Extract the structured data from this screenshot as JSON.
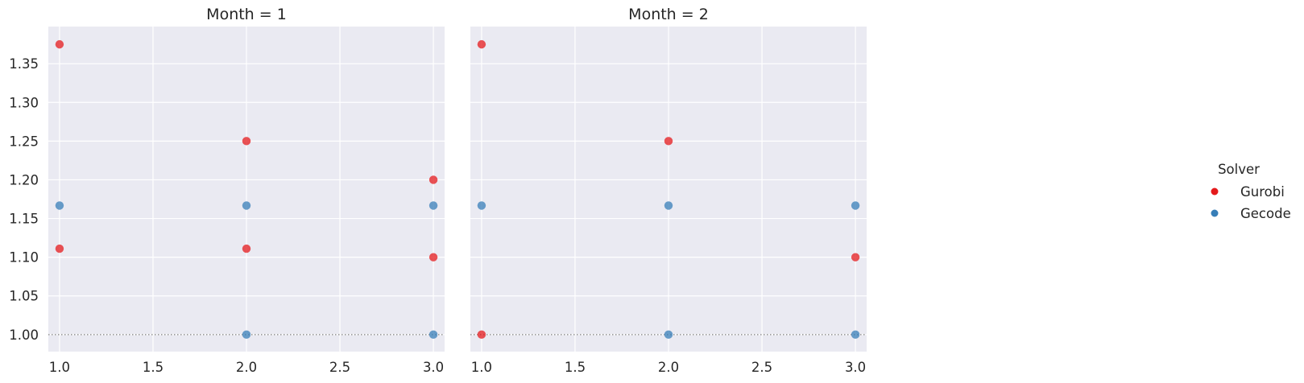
{
  "chart_data": {
    "type": "scatter",
    "x_ticks": [
      "1.0",
      "1.5",
      "2.0",
      "2.5",
      "3.0"
    ],
    "y_ticks": [
      "1.00",
      "1.05",
      "1.10",
      "1.15",
      "1.20",
      "1.25",
      "1.30",
      "1.35"
    ],
    "xlim": [
      0.94,
      3.06
    ],
    "ylim": [
      0.978,
      1.398
    ],
    "reference_line_y": 1.0,
    "grid": true,
    "legend": {
      "title": "Solver",
      "placement": "right",
      "entries": [
        {
          "name": "Gurobi",
          "color": "#e41a1c"
        },
        {
          "name": "Gecode",
          "color": "#377eb8"
        }
      ]
    },
    "panels": [
      {
        "title": "Month = 1",
        "series": [
          {
            "name": "Gurobi",
            "points": [
              [
                1.0,
                1.375
              ],
              [
                1.0,
                1.111
              ],
              [
                2.0,
                1.25
              ],
              [
                2.0,
                1.111
              ],
              [
                3.0,
                1.2
              ],
              [
                3.0,
                1.1
              ]
            ]
          },
          {
            "name": "Gecode",
            "points": [
              [
                1.0,
                1.1667
              ],
              [
                2.0,
                1.1667
              ],
              [
                2.0,
                1.0
              ],
              [
                3.0,
                1.1667
              ],
              [
                3.0,
                1.0
              ]
            ]
          }
        ]
      },
      {
        "title": "Month = 2",
        "series": [
          {
            "name": "Gurobi",
            "points": [
              [
                1.0,
                1.375
              ],
              [
                1.0,
                1.0
              ],
              [
                2.0,
                1.25
              ],
              [
                3.0,
                1.1
              ]
            ]
          },
          {
            "name": "Gecode",
            "points": [
              [
                1.0,
                1.1667
              ],
              [
                2.0,
                1.1667
              ],
              [
                2.0,
                1.0
              ],
              [
                3.0,
                1.1667
              ],
              [
                3.0,
                1.0
              ]
            ]
          }
        ]
      }
    ]
  }
}
